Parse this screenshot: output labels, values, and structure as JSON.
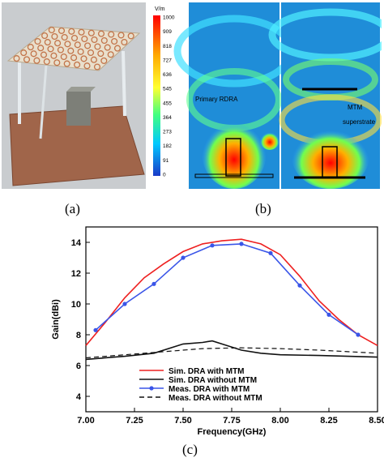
{
  "captions": {
    "a": "(a)",
    "b": "(b)",
    "c": "(c)"
  },
  "field_panel": {
    "colorbar_unit": "V/m",
    "colorbar_ticks": [
      "1000",
      "909",
      "818",
      "727",
      "636",
      "545",
      "455",
      "364",
      "273",
      "182",
      "91",
      "0"
    ],
    "label_left": "Primary RDRA",
    "label_right_line1": "MTM",
    "label_right_line2": "superstrate"
  },
  "chart_data": {
    "type": "line",
    "xlabel": "Frequency(GHz)",
    "ylabel": "Gain(dBi)",
    "xlim": [
      7.0,
      8.5
    ],
    "ylim": [
      3,
      15
    ],
    "xticks": [
      "7.00",
      "7.25",
      "7.50",
      "7.75",
      "8.00",
      "8.25",
      "8.50"
    ],
    "yticks": [
      "4",
      "6",
      "8",
      "10",
      "12",
      "14"
    ],
    "legend_position": "bottom-center",
    "series": [
      {
        "name": "Sim. DRA with MTM",
        "color": "#ee2020",
        "style": "solid",
        "x": [
          7.0,
          7.1,
          7.2,
          7.3,
          7.4,
          7.5,
          7.6,
          7.7,
          7.8,
          7.9,
          8.0,
          8.1,
          8.2,
          8.3,
          8.4,
          8.5
        ],
        "y": [
          7.3,
          8.8,
          10.4,
          11.7,
          12.6,
          13.4,
          13.9,
          14.1,
          14.2,
          13.9,
          13.2,
          11.8,
          10.2,
          9.0,
          8.0,
          7.3
        ]
      },
      {
        "name": "Sim. DRA without MTM",
        "color": "#111111",
        "style": "solid",
        "x": [
          7.0,
          7.2,
          7.35,
          7.5,
          7.6,
          7.65,
          7.7,
          7.8,
          7.9,
          8.0,
          8.2,
          8.5
        ],
        "y": [
          6.4,
          6.6,
          6.8,
          7.4,
          7.5,
          7.6,
          7.4,
          7.0,
          6.8,
          6.7,
          6.65,
          6.55
        ]
      },
      {
        "name": "Meas. DRA with MTM",
        "color": "#3a55e8",
        "style": "solid-marker",
        "x": [
          7.05,
          7.2,
          7.35,
          7.5,
          7.65,
          7.8,
          7.95,
          8.1,
          8.25,
          8.4
        ],
        "y": [
          8.3,
          10.0,
          11.3,
          13.0,
          13.8,
          13.9,
          13.3,
          11.2,
          9.3,
          8.0
        ]
      },
      {
        "name": "Meas. DRA without MTM",
        "color": "#111111",
        "style": "dashed",
        "x": [
          7.0,
          7.2,
          7.4,
          7.6,
          7.8,
          8.0,
          8.2,
          8.5
        ],
        "y": [
          6.5,
          6.7,
          6.9,
          7.1,
          7.15,
          7.1,
          7.0,
          6.8
        ]
      }
    ]
  }
}
